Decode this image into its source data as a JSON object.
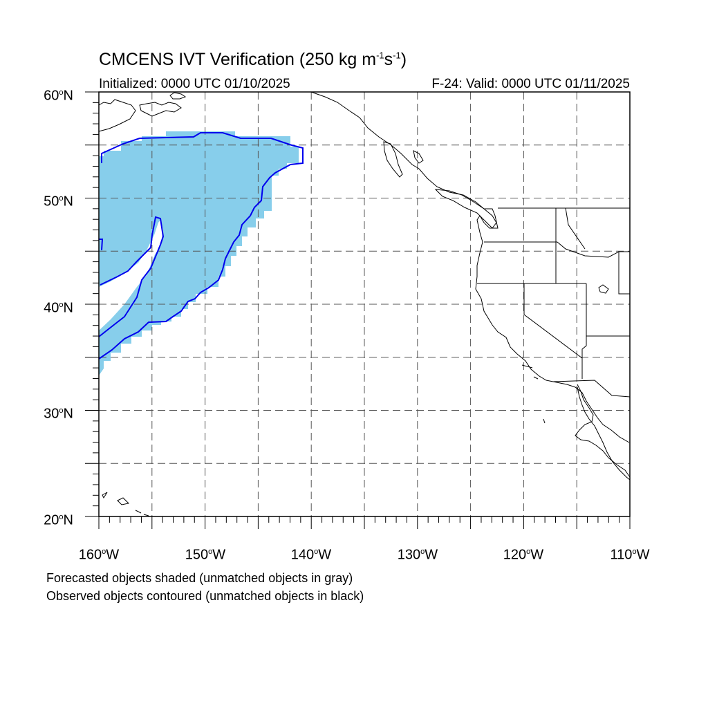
{
  "map": {
    "title_prefix": "CMCENS IVT Verification (250 kg m",
    "title_sup1": "-1",
    "title_mid": "s",
    "title_sup2": "-1",
    "title_suffix": ")",
    "initialized": "Initialized: 0000 UTC 01/10/2025",
    "valid": "F-24: Valid: 0000 UTC 01/11/2025",
    "degree_mark": "o",
    "lat_labels": [
      {
        "num": "60",
        "hemi": "N"
      },
      {
        "num": "50",
        "hemi": "N"
      },
      {
        "num": "40",
        "hemi": "N"
      },
      {
        "num": "30",
        "hemi": "N"
      },
      {
        "num": "20",
        "hemi": "N"
      }
    ],
    "lon_labels": [
      {
        "num": "160",
        "hemi": "W"
      },
      {
        "num": "150",
        "hemi": "W"
      },
      {
        "num": "140",
        "hemi": "W"
      },
      {
        "num": "130",
        "hemi": "W"
      },
      {
        "num": "120",
        "hemi": "W"
      },
      {
        "num": "110",
        "hemi": "W"
      }
    ],
    "extent": {
      "lon_min": -160,
      "lon_max": -110,
      "lat_min": 20,
      "lat_max": 60
    },
    "grid_interval_deg": 5,
    "gridlines": "dashed",
    "footnotes": [
      "Forecasted objects shaded (unmatched objects in gray)",
      "Observed objects contoured (unmatched objects in black)"
    ],
    "colors": {
      "forecast_fill": "#87ceeb",
      "observed_contour": "#0000ee",
      "coastline": "#000000",
      "grid": "#555555"
    }
  }
}
